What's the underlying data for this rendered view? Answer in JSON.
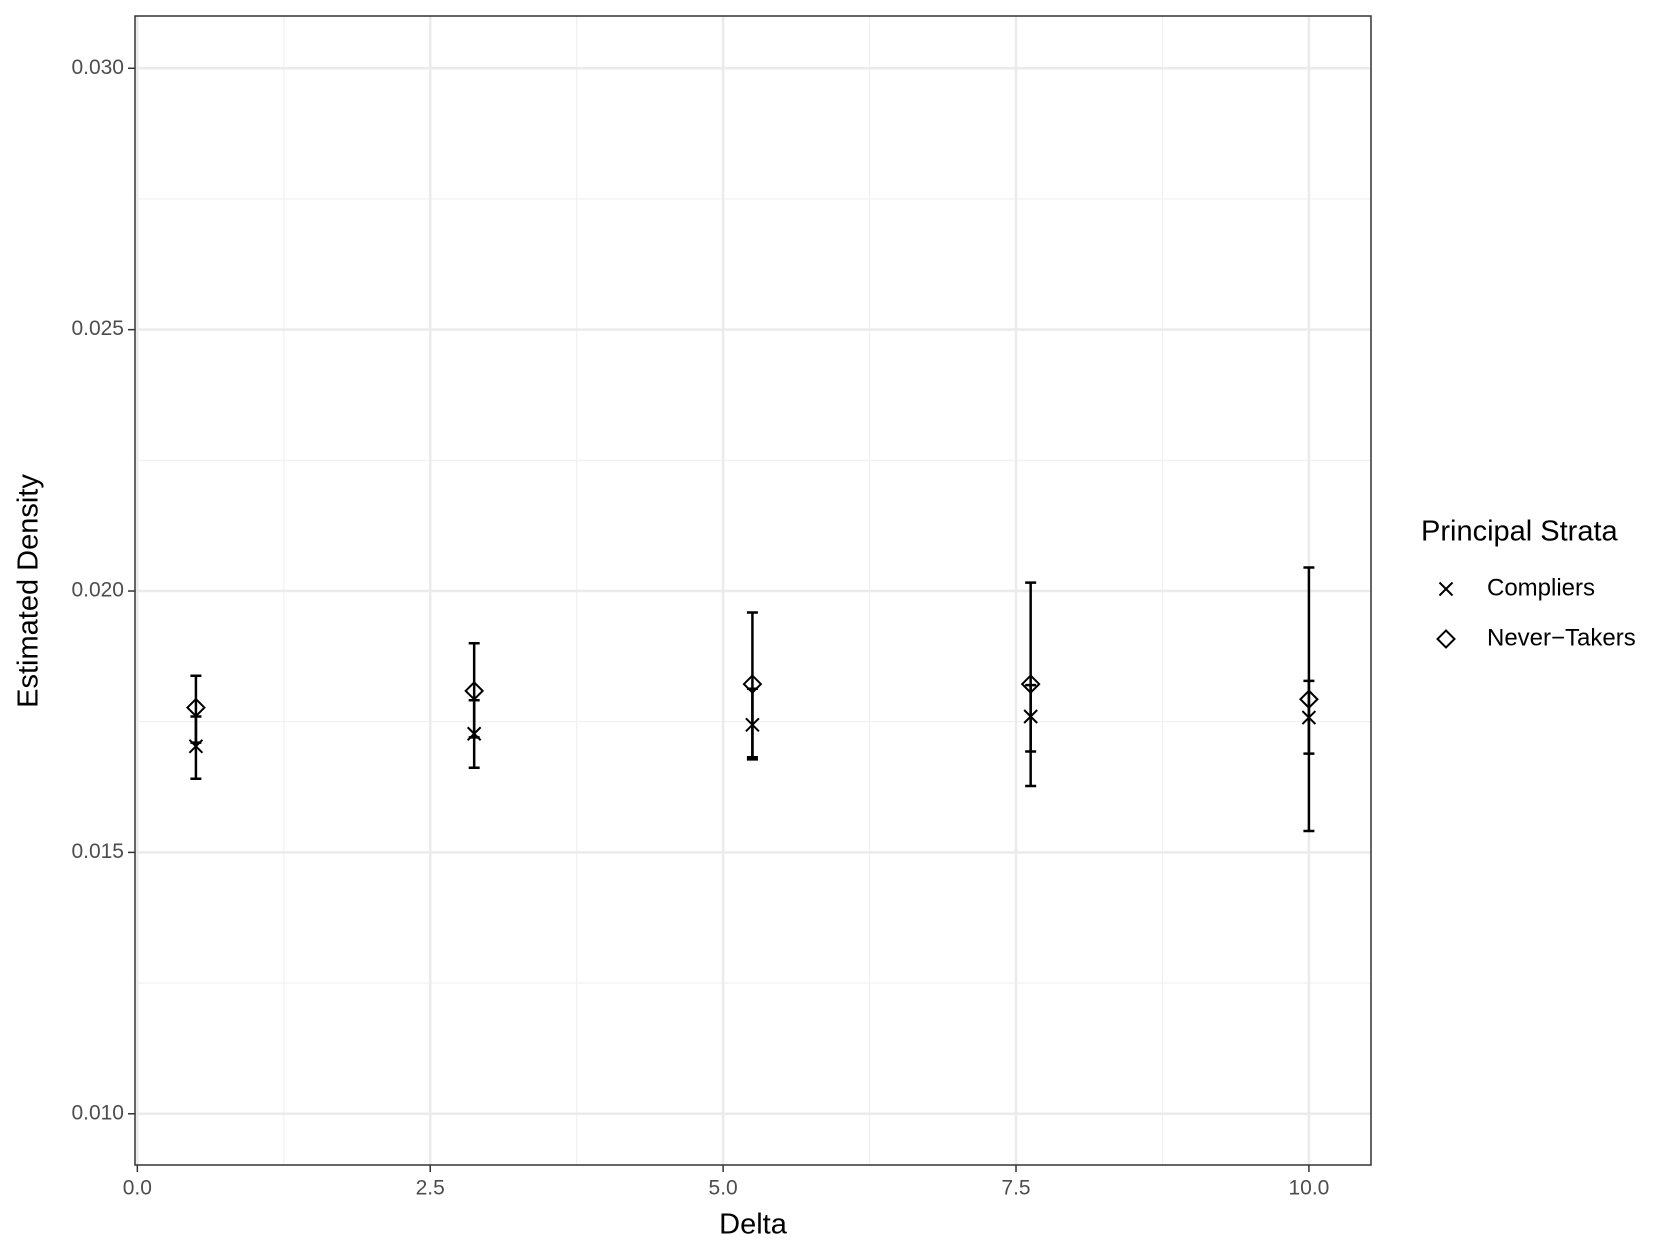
{
  "chart_data": {
    "type": "scatter",
    "x_label": "Delta",
    "y_label": "Estimated Density",
    "legend_title": "Principal Strata",
    "x": [
      0.5,
      2.875,
      5.25,
      7.625,
      10.0
    ],
    "series": [
      {
        "name": "Compliers",
        "marker": "x",
        "color": "#000000",
        "values": [
          0.01703,
          0.01727,
          0.01744,
          0.0176,
          0.01758
        ],
        "lower": [
          0.01641,
          0.01662,
          0.01678,
          0.01627,
          0.01541
        ],
        "upper": [
          0.0176,
          0.01791,
          0.01813,
          0.0182,
          0.01828
        ]
      },
      {
        "name": "Never−Takers",
        "marker": "diamond",
        "color": "#000000",
        "values": [
          0.01777,
          0.01809,
          0.01822,
          0.01822,
          0.01793
        ],
        "lower": [
          0.0171,
          0.0172,
          0.01682,
          0.01693,
          0.01689
        ],
        "upper": [
          0.01838,
          0.019,
          0.01959,
          0.02016,
          0.02045
        ]
      }
    ],
    "xlim": [
      -0.02,
      10.53
    ],
    "ylim": [
      0.00902,
      0.031
    ],
    "xticks": [
      {
        "value": 0,
        "label": "0.0"
      },
      2.5,
      {
        "value": 5,
        "label": "5.0"
      },
      7.5,
      {
        "value": 10,
        "label": "10.0"
      }
    ],
    "yticks": [
      {
        "value": 0.01,
        "label": "0.010"
      },
      0.015,
      {
        "value": 0.02,
        "label": "0.020"
      },
      0.025,
      {
        "value": 0.03,
        "label": "0.030"
      }
    ],
    "grid": true,
    "minor_grid": true,
    "legend": "right"
  }
}
